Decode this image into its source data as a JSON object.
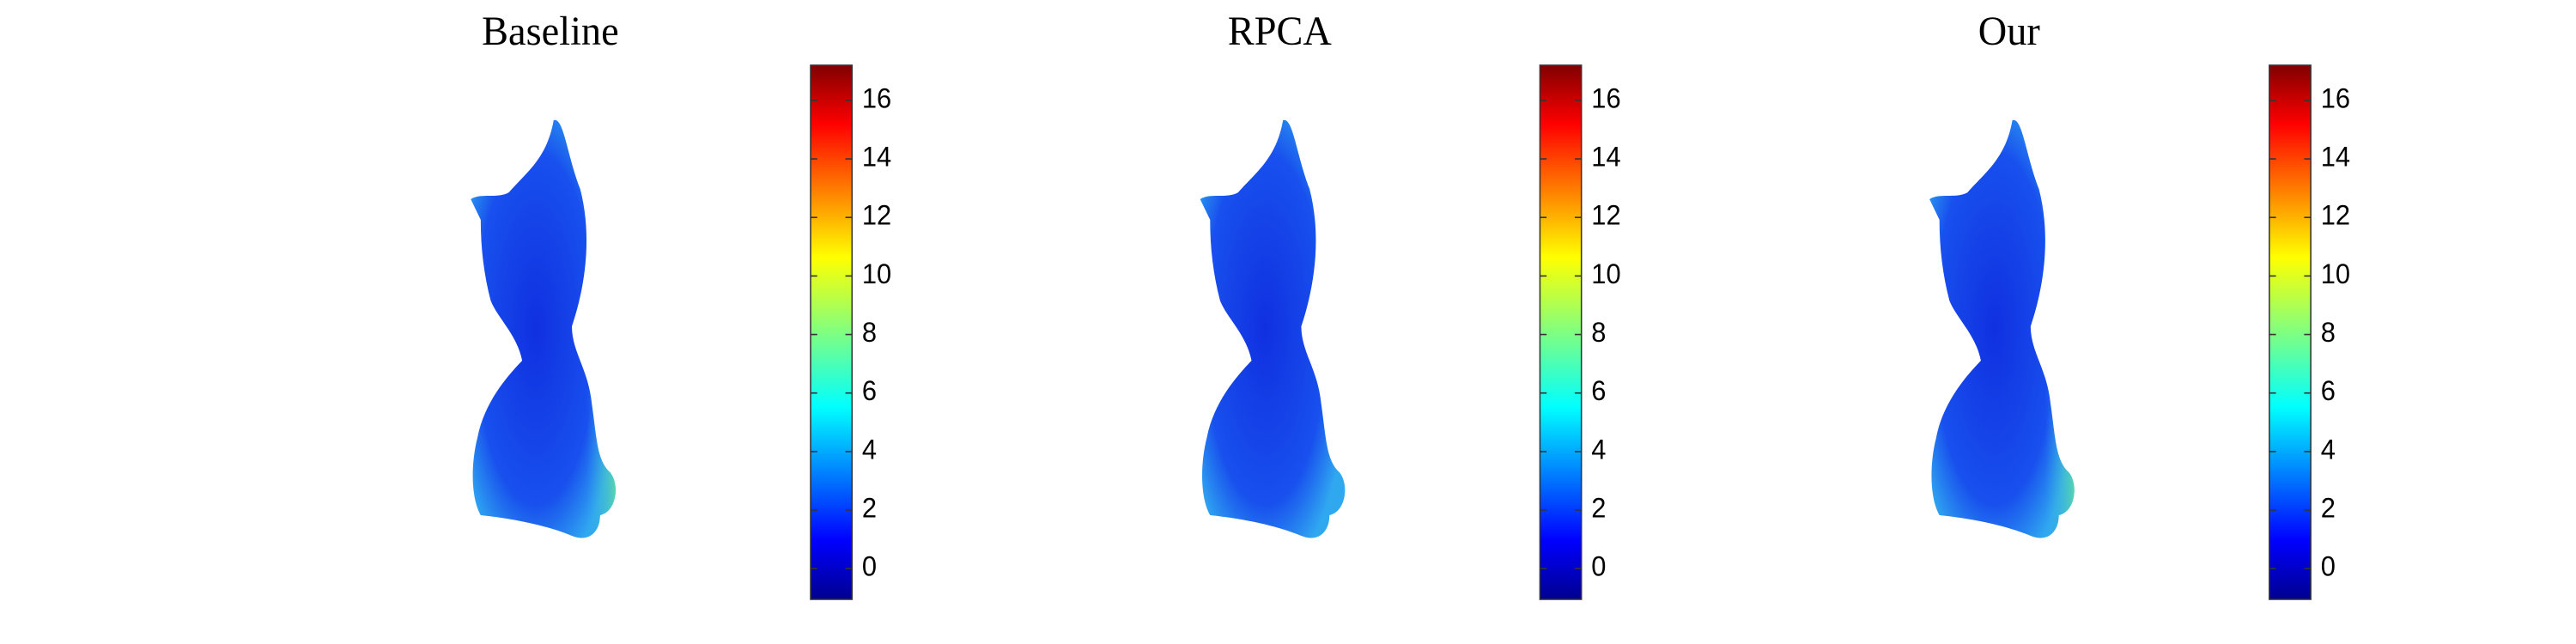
{
  "chart_data": [
    {
      "type": "colorbar",
      "title": "Baseline",
      "ylim": [
        -1.05,
        17.2
      ],
      "yticks": [
        0,
        2,
        4,
        6,
        8,
        10,
        12,
        14,
        16
      ]
    },
    {
      "type": "colorbar",
      "title": "RPCA",
      "ylim": [
        -1.05,
        17.2
      ],
      "yticks": [
        0,
        2,
        4,
        6,
        8,
        10,
        12,
        14,
        16
      ]
    },
    {
      "type": "colorbar",
      "title": "Our",
      "ylim": [
        -1.05,
        17.2
      ],
      "yticks": [
        0,
        2,
        4,
        6,
        8,
        10,
        12,
        14,
        16
      ]
    }
  ]
}
